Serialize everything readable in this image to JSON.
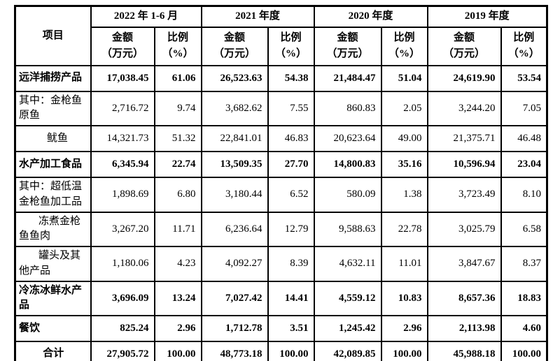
{
  "page": {
    "background_color": "#ffffff",
    "border_color": "#000000",
    "text_color": "#000000"
  },
  "table": {
    "item_header": "项目",
    "period_headers": [
      "2022 年 1-6 月",
      "2021 年度",
      "2020 年度",
      "2019 年度"
    ],
    "amount_header": "金额\n（万元）",
    "ratio_header": "比例\n（%）",
    "rows": [
      {
        "label": "远洋捕捞产品",
        "emphasis": true,
        "indent": 0,
        "align": "left",
        "values": [
          "17,038.45",
          "61.06",
          "26,523.63",
          "54.38",
          "21,484.47",
          "51.04",
          "24,619.90",
          "53.54"
        ]
      },
      {
        "label": "其中：金枪鱼原鱼",
        "emphasis": false,
        "indent": 0,
        "align": "left",
        "values": [
          "2,716.72",
          "9.74",
          "3,682.62",
          "7.55",
          "860.83",
          "2.05",
          "3,244.20",
          "7.05"
        ]
      },
      {
        "label": "鱿鱼",
        "emphasis": false,
        "indent": 2,
        "align": "left",
        "values": [
          "14,321.73",
          "51.32",
          "22,841.01",
          "46.83",
          "20,623.64",
          "49.00",
          "21,375.71",
          "46.48"
        ]
      },
      {
        "label": "水产加工食品",
        "emphasis": true,
        "indent": 0,
        "align": "left",
        "values": [
          "6,345.94",
          "22.74",
          "13,509.35",
          "27.70",
          "14,800.83",
          "35.16",
          "10,596.94",
          "23.04"
        ]
      },
      {
        "label": "其中：超低温金枪鱼加工品",
        "emphasis": false,
        "indent": 0,
        "align": "left",
        "values": [
          "1,898.69",
          "6.80",
          "3,180.44",
          "6.52",
          "580.09",
          "1.38",
          "3,723.49",
          "8.10"
        ]
      },
      {
        "label": "冻煮金枪鱼鱼肉",
        "emphasis": false,
        "indent": 1,
        "align": "left",
        "values": [
          "3,267.20",
          "11.71",
          "6,236.64",
          "12.79",
          "9,588.63",
          "22.78",
          "3,025.79",
          "6.58"
        ]
      },
      {
        "label": "罐头及其他产品",
        "emphasis": false,
        "indent": 1,
        "align": "left",
        "values": [
          "1,180.06",
          "4.23",
          "4,092.27",
          "8.39",
          "4,632.11",
          "11.01",
          "3,847.67",
          "8.37"
        ]
      },
      {
        "label": "冷冻冰鲜水产品",
        "emphasis": true,
        "indent": 0,
        "align": "left",
        "values": [
          "3,696.09",
          "13.24",
          "7,027.42",
          "14.41",
          "4,559.12",
          "10.83",
          "8,657.36",
          "18.83"
        ]
      },
      {
        "label": "餐饮",
        "emphasis": true,
        "indent": 0,
        "align": "left",
        "values": [
          "825.24",
          "2.96",
          "1,712.78",
          "3.51",
          "1,245.42",
          "2.96",
          "2,113.98",
          "4.60"
        ]
      },
      {
        "label": "合计",
        "emphasis": true,
        "indent": 0,
        "align": "center",
        "values": [
          "27,905.72",
          "100.00",
          "48,773.18",
          "100.00",
          "42,089.85",
          "100.00",
          "45,988.18",
          "100.00"
        ]
      }
    ]
  }
}
